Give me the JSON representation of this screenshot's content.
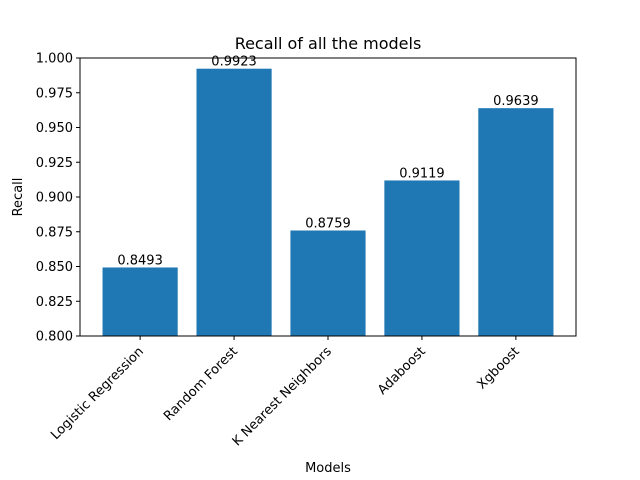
{
  "chart_data": {
    "type": "bar",
    "title": "Recall of all the models",
    "xlabel": "Models",
    "ylabel": "Recall",
    "categories": [
      "Logistic Regression",
      "Random Forest",
      "K Nearest Neighbors",
      "Adaboost",
      "Xgboost"
    ],
    "values": [
      0.8493,
      0.9923,
      0.8759,
      0.9119,
      0.9639
    ],
    "value_labels": [
      "0.8493",
      "0.9923",
      "0.8759",
      "0.9119",
      "0.9639"
    ],
    "ylim": [
      0.8,
      1.0
    ],
    "yticks": [
      0.8,
      0.825,
      0.85,
      0.875,
      0.9,
      0.925,
      0.95,
      0.975,
      1.0
    ],
    "ytick_labels": [
      "0.800",
      "0.825",
      "0.850",
      "0.875",
      "0.900",
      "0.925",
      "0.950",
      "0.975",
      "1.000"
    ],
    "bar_color": "#1f77b4",
    "grid": false,
    "legend": false
  }
}
